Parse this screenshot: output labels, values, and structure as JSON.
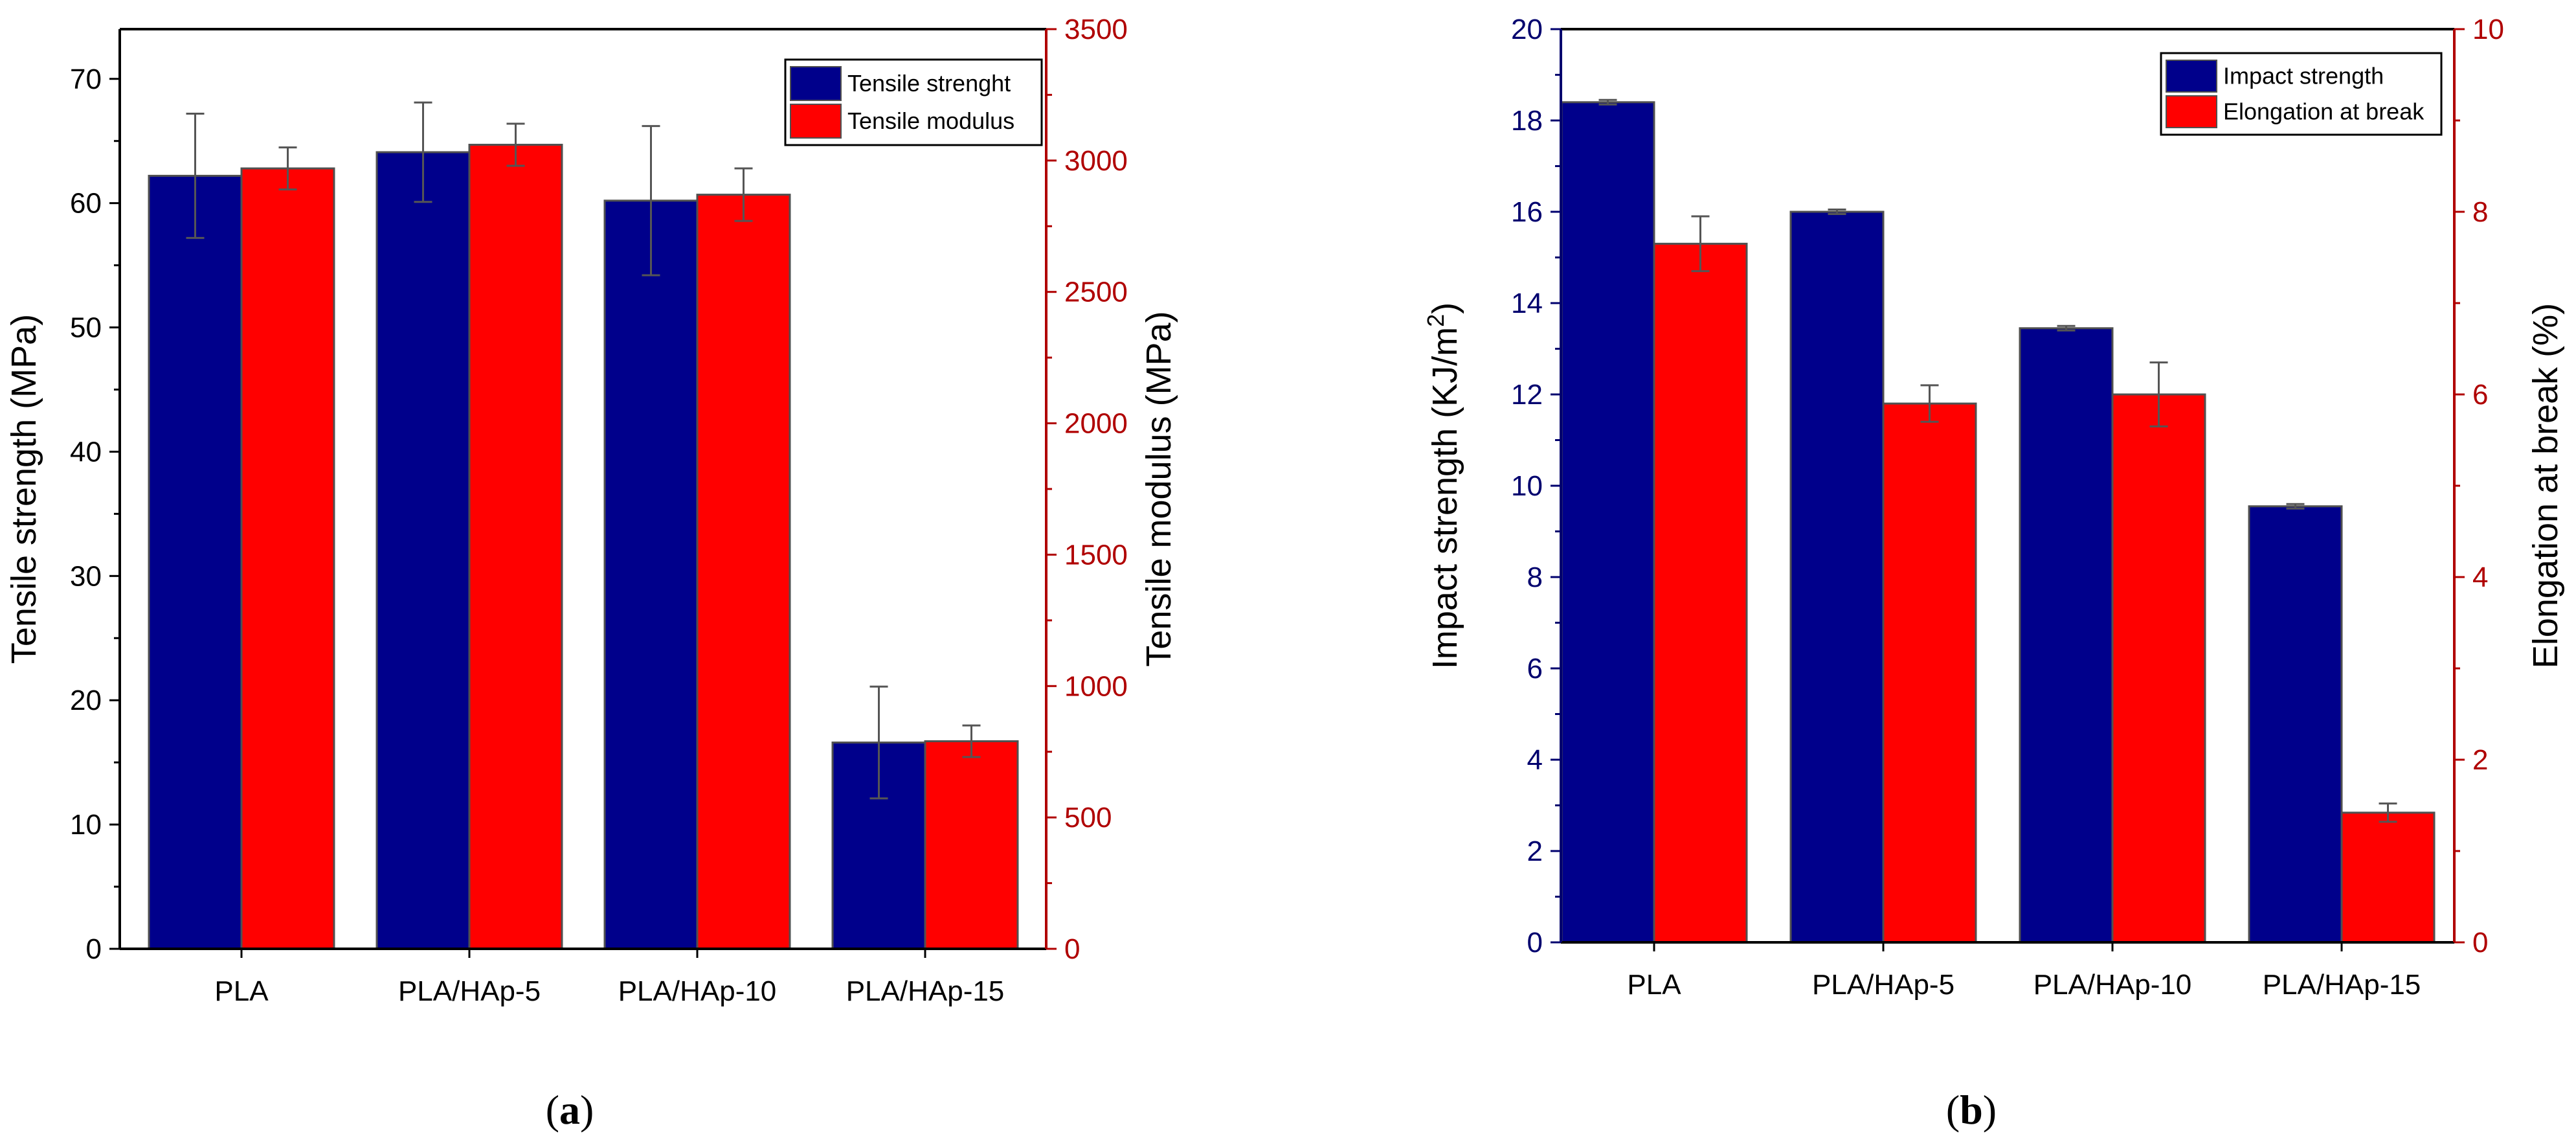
{
  "chart_data": [
    {
      "type": "bar",
      "panel": "a",
      "caption": "(a)",
      "caption_letter": "a",
      "categories": [
        "PLA",
        "PLA/HAp-5",
        "PLA/HAp-10",
        "PLA/HAp-15"
      ],
      "left_axis": {
        "label": "Tensile strength (MPa)",
        "ylim": [
          0,
          74
        ],
        "ticks": [
          0,
          10,
          20,
          30,
          40,
          50,
          60,
          70
        ],
        "color": "#000000"
      },
      "right_axis": {
        "label": "Tensile modulus (MPa)",
        "ylim": [
          0,
          3500
        ],
        "ticks": [
          0,
          500,
          1000,
          1500,
          2000,
          2500,
          3000,
          3500
        ],
        "color": "#b00000"
      },
      "series": [
        {
          "name": "Tensile strenght",
          "axis": "left",
          "color": "#00008b",
          "values": [
            62.2,
            64.1,
            60.2,
            16.6
          ],
          "errors": [
            5.0,
            4.0,
            6.0,
            4.5
          ]
        },
        {
          "name": "Tensile modulus",
          "axis": "right",
          "color": "#ff0000",
          "values": [
            2970,
            3060,
            2870,
            790
          ],
          "errors": [
            80,
            80,
            100,
            60
          ]
        }
      ],
      "legend": "top-right"
    },
    {
      "type": "bar",
      "panel": "b",
      "caption": "(b)",
      "caption_letter": "b",
      "categories": [
        "PLA",
        "PLA/HAp-5",
        "PLA/HAp-10",
        "PLA/HAp-15"
      ],
      "left_axis": {
        "label_main": "Impact strength (KJ/m",
        "label_sup": "2",
        "label_end": ")",
        "ylim": [
          0,
          20
        ],
        "ticks": [
          0,
          2,
          4,
          6,
          8,
          10,
          12,
          14,
          16,
          18,
          20
        ],
        "color": "#00006e"
      },
      "right_axis": {
        "label": "Elongation at break (%)",
        "ylim": [
          0,
          10
        ],
        "ticks": [
          0,
          2,
          4,
          6,
          8,
          10
        ],
        "color": "#b00000"
      },
      "series": [
        {
          "name": "Impact strength",
          "axis": "left",
          "color": "#00008b",
          "values": [
            18.4,
            16.0,
            13.45,
            9.55
          ],
          "errors": [
            0.05,
            0.05,
            0.05,
            0.05
          ]
        },
        {
          "name": "Elongation at break",
          "axis": "right",
          "color": "#ff0000",
          "values": [
            7.65,
            5.9,
            6.0,
            1.42
          ],
          "errors": [
            0.3,
            0.2,
            0.35,
            0.1
          ]
        }
      ],
      "legend": "top-right"
    }
  ]
}
